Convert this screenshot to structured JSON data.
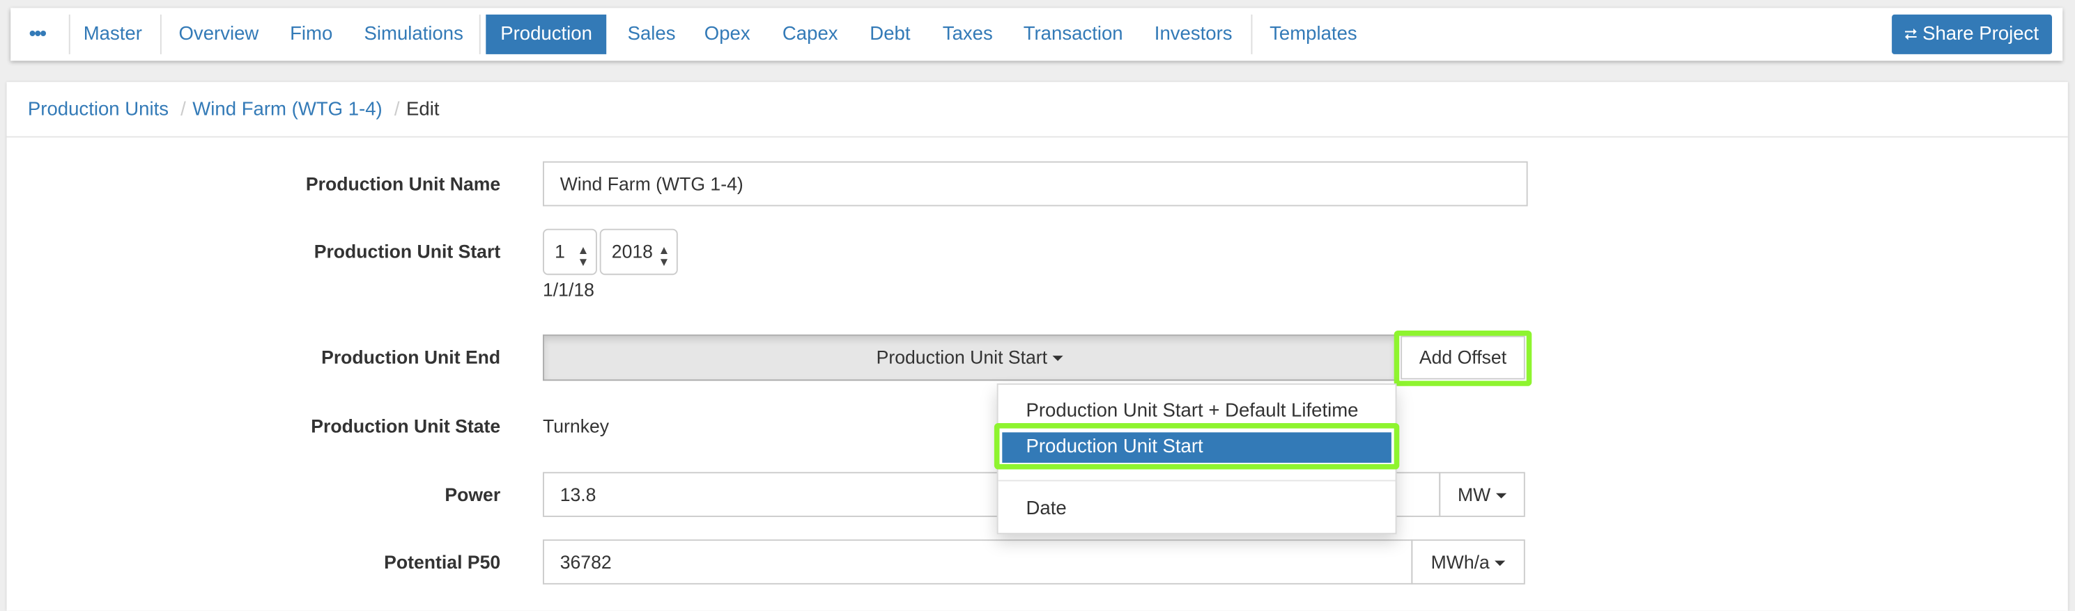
{
  "nav": {
    "more_icon": "ellipsis-icon",
    "items": [
      "Master",
      "Overview",
      "Fimo",
      "Simulations",
      "Production",
      "Sales",
      "Opex",
      "Capex",
      "Debt",
      "Taxes",
      "Transaction",
      "Investors",
      "Templates"
    ],
    "active": "Production",
    "share_label": "Share Project",
    "share_icon": "share-icon"
  },
  "breadcrumb": [
    "Production Units",
    "Wind Farm (WTG 1-4)",
    "Edit"
  ],
  "form": {
    "name_label": "Production Unit Name",
    "name_value": "Wind Farm (WTG 1-4)",
    "start_label": "Production Unit Start",
    "start_month": "1",
    "start_year": "2018",
    "start_date_text": "1/1/18",
    "end_label": "Production Unit End",
    "end_value": "Production Unit Start",
    "add_offset_label": "Add Offset",
    "state_label": "Production Unit State",
    "state_value": "Turnkey",
    "power_label": "Power",
    "power_value": "13.8",
    "power_unit": "MW",
    "p50_label": "Potential P50",
    "p50_value": "36782",
    "p50_unit": "MWh/a"
  },
  "dropdown": {
    "items": [
      "Production Unit Start + Default Lifetime",
      "Production Unit Start",
      "Date"
    ],
    "selected": "Production Unit Start"
  },
  "colors": {
    "primary": "#337ab7",
    "highlight": "#8ef42f"
  }
}
